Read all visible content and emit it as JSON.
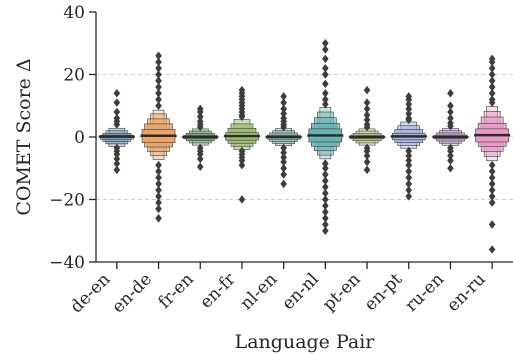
{
  "chart_data": {
    "type": "boxen",
    "title": "",
    "xlabel": "Language Pair",
    "ylabel": "COMET Score Δ",
    "ylim": [
      -40,
      40
    ],
    "yticks": [
      -40,
      -20,
      0,
      20,
      40
    ],
    "ytick_labels": [
      "−40",
      "−20",
      "0",
      "20",
      "40"
    ],
    "grid": "horizontal dashed",
    "categories": [
      "de-en",
      "en-de",
      "fr-en",
      "en-fr",
      "nl-en",
      "en-nl",
      "pt-en",
      "en-pt",
      "ru-en",
      "en-ru"
    ],
    "colors": [
      "#7fa3c7",
      "#e8a466",
      "#7dba84",
      "#9aba6e",
      "#8fc0b8",
      "#69b3b0",
      "#c6d48c",
      "#a9b1e0",
      "#c8a3d6",
      "#e89ac4"
    ],
    "series": [
      {
        "category": "de-en",
        "median": 0.1,
        "boxes": [
          [
            -0.7,
            0.6
          ],
          [
            -1.4,
            1.2
          ],
          [
            -2.2,
            2.0
          ],
          [
            -3.0,
            2.8
          ]
        ],
        "outliers": [
          14,
          11,
          8,
          6,
          5,
          4,
          -3.5,
          -4.5,
          -5.5,
          -7,
          -8.5,
          -10.5
        ]
      },
      {
        "category": "en-de",
        "median": 0.4,
        "boxes": [
          [
            -1.8,
            2.4
          ],
          [
            -3.2,
            4.2
          ],
          [
            -4.6,
            5.8
          ],
          [
            -6.0,
            7.4
          ],
          [
            -7.2,
            8.6
          ]
        ],
        "outliers": [
          26,
          24,
          22,
          20,
          18,
          16,
          14,
          12,
          10,
          -9,
          -11,
          -13,
          -15,
          -17,
          -19,
          -21,
          -23,
          -26
        ]
      },
      {
        "category": "fr-en",
        "median": 0.0,
        "boxes": [
          [
            -0.6,
            0.6
          ],
          [
            -1.2,
            1.2
          ],
          [
            -1.9,
            1.9
          ],
          [
            -2.6,
            2.6
          ]
        ],
        "outliers": [
          9,
          8,
          6.5,
          5,
          4,
          3.2,
          -3.5,
          -4.5,
          -5.5,
          -7,
          -9.5
        ]
      },
      {
        "category": "en-fr",
        "median": 0.3,
        "boxes": [
          [
            -1.0,
            1.4
          ],
          [
            -2.0,
            2.8
          ],
          [
            -3.0,
            4.2
          ],
          [
            -4.0,
            5.6
          ]
        ],
        "outliers": [
          15,
          14,
          13,
          12,
          11,
          10,
          9,
          8,
          7,
          6.5,
          -4.5,
          -5.5,
          -6.5,
          -7.5,
          -9,
          -20
        ]
      },
      {
        "category": "nl-en",
        "median": 0.0,
        "boxes": [
          [
            -0.7,
            0.6
          ],
          [
            -1.4,
            1.3
          ],
          [
            -2.1,
            2.0
          ],
          [
            -2.8,
            2.7
          ]
        ],
        "outliers": [
          13,
          11,
          9,
          7.5,
          6,
          5,
          4,
          3.2,
          -3.5,
          -5,
          -6.5,
          -8,
          -10,
          -12,
          -15
        ]
      },
      {
        "category": "en-nl",
        "median": 0.5,
        "boxes": [
          [
            -1.6,
            2.6
          ],
          [
            -3.0,
            4.4
          ],
          [
            -4.4,
            6.2
          ],
          [
            -5.8,
            8.0
          ],
          [
            -7.0,
            9.4
          ]
        ],
        "outliers": [
          30,
          28,
          25,
          22,
          20,
          17,
          14,
          12,
          10.5,
          -8.5,
          -10,
          -12,
          -14,
          -16,
          -18,
          -20,
          -22,
          -24,
          -26,
          -28,
          -30
        ]
      },
      {
        "category": "pt-en",
        "median": 0.0,
        "boxes": [
          [
            -0.6,
            0.6
          ],
          [
            -1.2,
            1.2
          ],
          [
            -1.9,
            1.9
          ],
          [
            -2.6,
            2.6
          ]
        ],
        "outliers": [
          15,
          11,
          9,
          7,
          5.5,
          4,
          3.2,
          -3.5,
          -4.5,
          -6,
          -8,
          -10.5
        ]
      },
      {
        "category": "en-pt",
        "median": 0.2,
        "boxes": [
          [
            -0.9,
            1.2
          ],
          [
            -1.8,
            2.4
          ],
          [
            -2.7,
            3.6
          ],
          [
            -3.6,
            4.8
          ]
        ],
        "outliers": [
          13,
          12,
          10.5,
          9,
          7.5,
          6,
          5.5,
          -4.5,
          -6,
          -7.5,
          -9,
          -11,
          -13,
          -15,
          -17,
          -19
        ]
      },
      {
        "category": "ru-en",
        "median": 0.0,
        "boxes": [
          [
            -0.6,
            0.6
          ],
          [
            -1.3,
            1.3
          ],
          [
            -2.0,
            2.0
          ],
          [
            -2.7,
            2.7
          ]
        ],
        "outliers": [
          14,
          10,
          8,
          6,
          4.5,
          3.5,
          -3.5,
          -4.5,
          -6,
          -7.5,
          -10
        ]
      },
      {
        "category": "en-ru",
        "median": 0.6,
        "boxes": [
          [
            -1.6,
            2.6
          ],
          [
            -3.0,
            4.4
          ],
          [
            -4.6,
            6.4
          ],
          [
            -6.2,
            8.2
          ],
          [
            -7.6,
            9.8
          ]
        ],
        "outliers": [
          25,
          24,
          22,
          20,
          18,
          16,
          14,
          12,
          11,
          -9,
          -11,
          -13,
          -15,
          -17,
          -19,
          -21,
          -28,
          -36
        ]
      }
    ]
  }
}
